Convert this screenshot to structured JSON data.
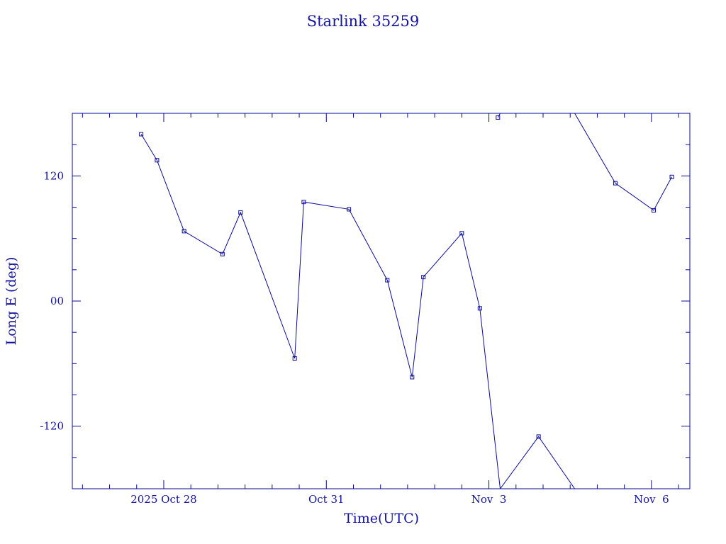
{
  "chart_data": {
    "type": "line",
    "title": "Starlink 35259",
    "xlabel": "Time(UTC)",
    "ylabel": "Long E (deg)",
    "xlim": [
      "2025-10-26T07:30",
      "2025-11-06T17:00"
    ],
    "ylim": [
      -180,
      180
    ],
    "x_tick_labels": [
      {
        "at": "2025-10-28T00:00",
        "label": "2025 Oct 28"
      },
      {
        "at": "2025-10-31T00:00",
        "label": "Oct 31"
      },
      {
        "at": "2025-11-03T00:00",
        "label": "Nov  3"
      },
      {
        "at": "2025-11-06T00:00",
        "label": "Nov  6"
      }
    ],
    "y_tick_labels": [
      {
        "at": 120,
        "label": "120"
      },
      {
        "at": 0,
        "label": "00"
      },
      {
        "at": -120,
        "label": "-120"
      }
    ],
    "grid": false,
    "line_color": "#0a0a9a",
    "series": [
      {
        "x": [
          "2025-10-27T14:00",
          "2025-10-27T21:00",
          "2025-10-28T09:00",
          "2025-10-29T02:00",
          "2025-10-29T10:00",
          "2025-10-30T10:00",
          "2025-10-30T14:00",
          "2025-10-31T10:00",
          "2025-11-01T03:00",
          "2025-11-01T14:00",
          "2025-11-01T19:00",
          "2025-11-02T12:00",
          "2025-11-02T20:00",
          "2025-11-03T05:00"
        ],
        "y": [
          160,
          135,
          67,
          45,
          85,
          -55,
          95,
          88,
          20,
          -73,
          23,
          65,
          -7,
          -180
        ]
      },
      {
        "x": [
          "2025-11-03T05:00",
          "2025-11-03T22:00",
          "2025-11-04T14:00"
        ],
        "y": [
          -180,
          -130,
          -180
        ]
      },
      {
        "x": [
          "2025-11-03T04:00",
          "2025-11-03T05:00"
        ],
        "y": [
          176,
          180
        ]
      },
      {
        "x": [
          "2025-11-04T14:00",
          "2025-11-05T08:00",
          "2025-11-06T01:00",
          "2025-11-06T09:00"
        ],
        "y": [
          180,
          113,
          87,
          119
        ]
      }
    ],
    "markers": {
      "x": [
        "2025-10-27T14:00",
        "2025-10-27T21:00",
        "2025-10-28T09:00",
        "2025-10-29T02:00",
        "2025-10-29T10:00",
        "2025-10-30T10:00",
        "2025-10-30T14:00",
        "2025-10-31T10:00",
        "2025-11-01T03:00",
        "2025-11-01T14:00",
        "2025-11-01T19:00",
        "2025-11-02T12:00",
        "2025-11-02T20:00",
        "2025-11-03T04:00",
        "2025-11-03T22:00",
        "2025-11-05T08:00",
        "2025-11-06T01:00",
        "2025-11-06T09:00"
      ],
      "y": [
        160,
        135,
        67,
        45,
        85,
        -55,
        95,
        88,
        20,
        -73,
        23,
        65,
        -7,
        176,
        -130,
        113,
        87,
        119
      ]
    }
  }
}
